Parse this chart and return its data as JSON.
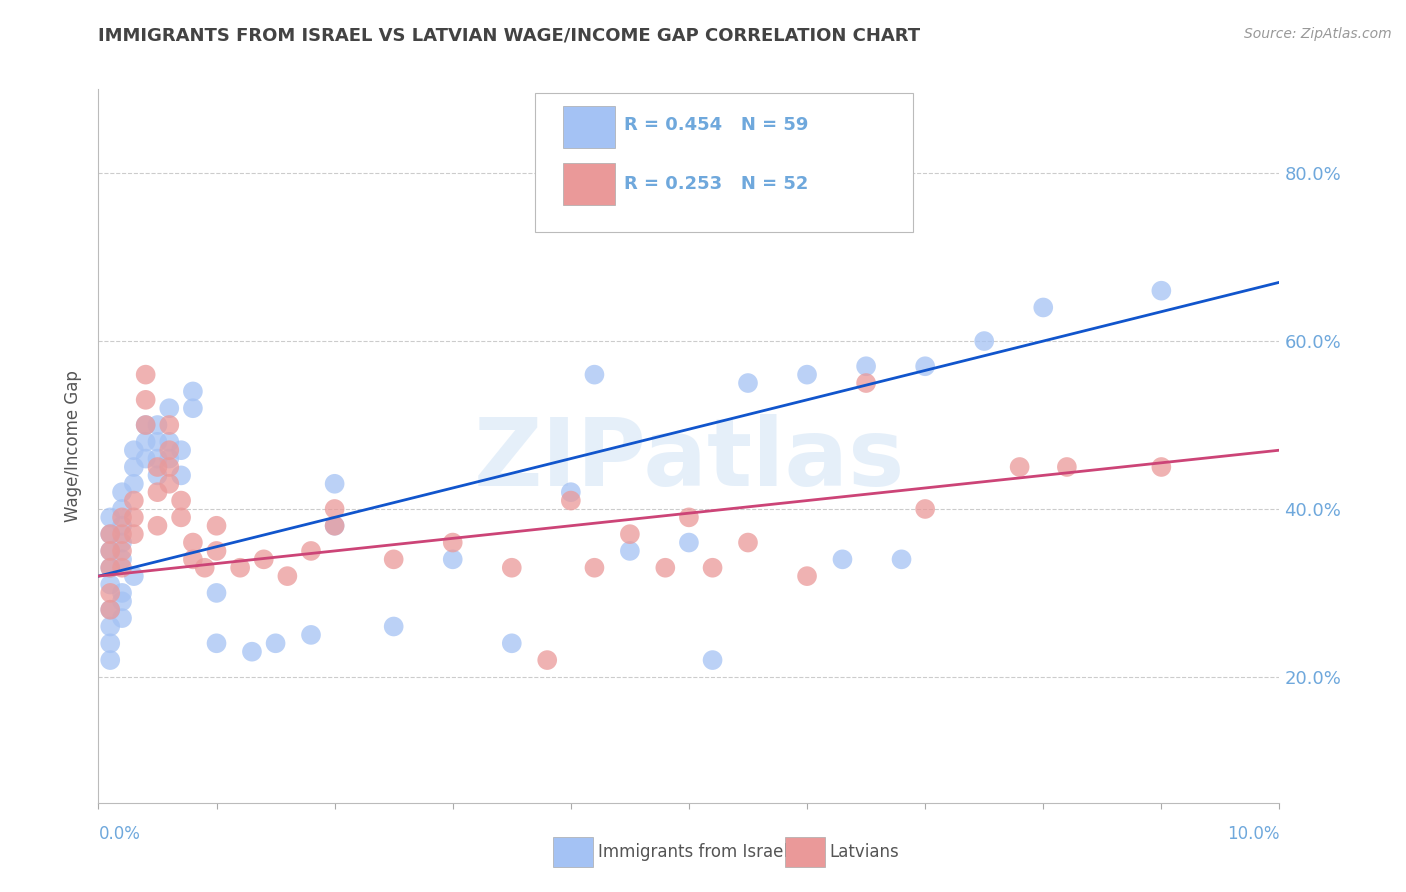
{
  "title": "IMMIGRANTS FROM ISRAEL VS LATVIAN WAGE/INCOME GAP CORRELATION CHART",
  "source": "Source: ZipAtlas.com",
  "ylabel": "Wage/Income Gap",
  "x_min": 0.0,
  "x_max": 0.1,
  "y_min": 0.05,
  "y_max": 0.9,
  "y_ticks": [
    0.2,
    0.4,
    0.6,
    0.8
  ],
  "y_tick_labels": [
    "20.0%",
    "40.0%",
    "60.0%",
    "80.0%"
  ],
  "blue_color": "#a4c2f4",
  "pink_color": "#ea9999",
  "blue_line_color": "#1155cc",
  "pink_line_color": "#cc4477",
  "R_blue": 0.454,
  "N_blue": 59,
  "R_pink": 0.253,
  "N_pink": 52,
  "watermark": "ZIPatlas",
  "axis_color": "#6fa8dc",
  "title_color": "#434343",
  "blue_scatter_x": [
    0.001,
    0.001,
    0.001,
    0.001,
    0.001,
    0.001,
    0.001,
    0.001,
    0.001,
    0.002,
    0.002,
    0.002,
    0.002,
    0.002,
    0.002,
    0.002,
    0.002,
    0.003,
    0.003,
    0.003,
    0.003,
    0.004,
    0.004,
    0.004,
    0.005,
    0.005,
    0.005,
    0.005,
    0.006,
    0.006,
    0.006,
    0.007,
    0.007,
    0.008,
    0.008,
    0.01,
    0.01,
    0.013,
    0.015,
    0.018,
    0.02,
    0.02,
    0.025,
    0.03,
    0.035,
    0.04,
    0.042,
    0.045,
    0.05,
    0.052,
    0.055,
    0.06,
    0.063,
    0.065,
    0.068,
    0.07,
    0.075,
    0.08,
    0.09
  ],
  "blue_scatter_y": [
    0.31,
    0.33,
    0.35,
    0.37,
    0.39,
    0.28,
    0.26,
    0.24,
    0.22,
    0.34,
    0.36,
    0.38,
    0.4,
    0.42,
    0.29,
    0.27,
    0.3,
    0.43,
    0.45,
    0.47,
    0.32,
    0.48,
    0.5,
    0.46,
    0.44,
    0.46,
    0.48,
    0.5,
    0.46,
    0.48,
    0.52,
    0.44,
    0.47,
    0.52,
    0.54,
    0.3,
    0.24,
    0.23,
    0.24,
    0.25,
    0.38,
    0.43,
    0.26,
    0.34,
    0.24,
    0.42,
    0.56,
    0.35,
    0.36,
    0.22,
    0.55,
    0.56,
    0.34,
    0.57,
    0.34,
    0.57,
    0.6,
    0.64,
    0.66
  ],
  "pink_scatter_x": [
    0.001,
    0.001,
    0.001,
    0.001,
    0.001,
    0.002,
    0.002,
    0.002,
    0.002,
    0.003,
    0.003,
    0.003,
    0.004,
    0.004,
    0.004,
    0.005,
    0.005,
    0.005,
    0.006,
    0.006,
    0.006,
    0.006,
    0.007,
    0.007,
    0.008,
    0.008,
    0.009,
    0.01,
    0.01,
    0.012,
    0.014,
    0.016,
    0.018,
    0.02,
    0.02,
    0.025,
    0.03,
    0.035,
    0.038,
    0.04,
    0.042,
    0.045,
    0.048,
    0.05,
    0.052,
    0.055,
    0.06,
    0.065,
    0.07,
    0.078,
    0.082,
    0.09
  ],
  "pink_scatter_y": [
    0.37,
    0.35,
    0.33,
    0.3,
    0.28,
    0.39,
    0.37,
    0.35,
    0.33,
    0.41,
    0.39,
    0.37,
    0.5,
    0.53,
    0.56,
    0.38,
    0.42,
    0.45,
    0.43,
    0.45,
    0.47,
    0.5,
    0.39,
    0.41,
    0.34,
    0.36,
    0.33,
    0.35,
    0.38,
    0.33,
    0.34,
    0.32,
    0.35,
    0.38,
    0.4,
    0.34,
    0.36,
    0.33,
    0.22,
    0.41,
    0.33,
    0.37,
    0.33,
    0.39,
    0.33,
    0.36,
    0.32,
    0.55,
    0.4,
    0.45,
    0.45,
    0.45
  ]
}
